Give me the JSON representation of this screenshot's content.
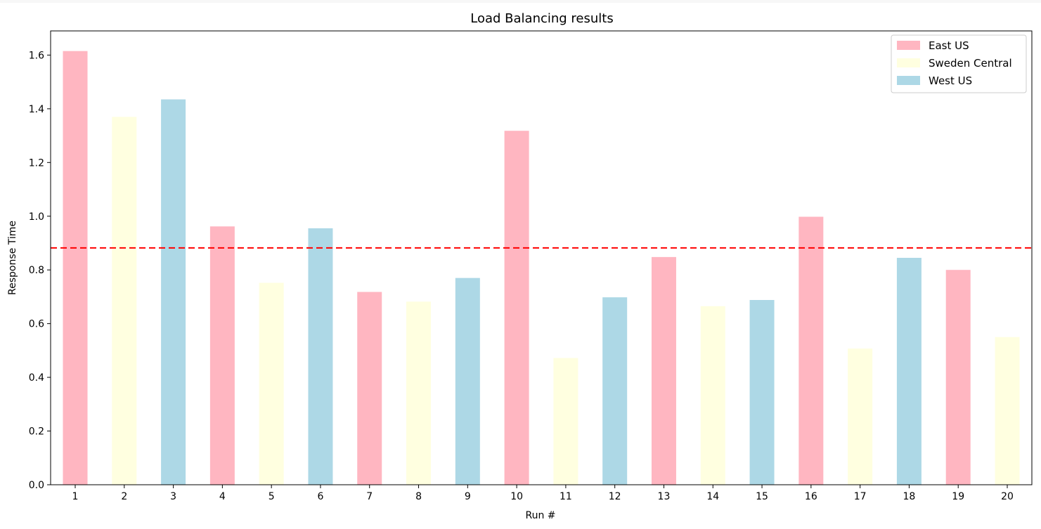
{
  "chart_data": {
    "type": "bar",
    "title": "Load Balancing results",
    "xlabel": "Run #",
    "ylabel": "Response Time",
    "ylim": [
      0,
      1.69
    ],
    "yticks": [
      "0.0",
      "0.2",
      "0.4",
      "0.6",
      "0.8",
      "1.0",
      "1.2",
      "1.4",
      "1.6"
    ],
    "categories": [
      "1",
      "2",
      "3",
      "4",
      "5",
      "6",
      "7",
      "8",
      "9",
      "10",
      "11",
      "12",
      "13",
      "14",
      "15",
      "16",
      "17",
      "18",
      "19",
      "20"
    ],
    "values": [
      1.615,
      1.37,
      1.435,
      0.962,
      0.752,
      0.955,
      0.718,
      0.682,
      0.77,
      1.318,
      0.472,
      0.698,
      0.848,
      0.665,
      0.688,
      0.998,
      0.507,
      0.845,
      0.8,
      0.55
    ],
    "regions": [
      "East US",
      "Sweden Central",
      "West US",
      "East US",
      "Sweden Central",
      "West US",
      "East US",
      "Sweden Central",
      "West US",
      "East US",
      "Sweden Central",
      "West US",
      "East US",
      "Sweden Central",
      "West US",
      "East US",
      "Sweden Central",
      "West US",
      "East US",
      "Sweden Central"
    ],
    "series": [
      {
        "name": "East US",
        "color": "#ffb6c1"
      },
      {
        "name": "Sweden Central",
        "color": "#ffffe0"
      },
      {
        "name": "West US",
        "color": "#add8e6"
      }
    ],
    "reference_line": {
      "value": 0.882,
      "color": "#ff0000",
      "style": "dashed"
    },
    "legend_position": "top-right",
    "grid": false
  }
}
